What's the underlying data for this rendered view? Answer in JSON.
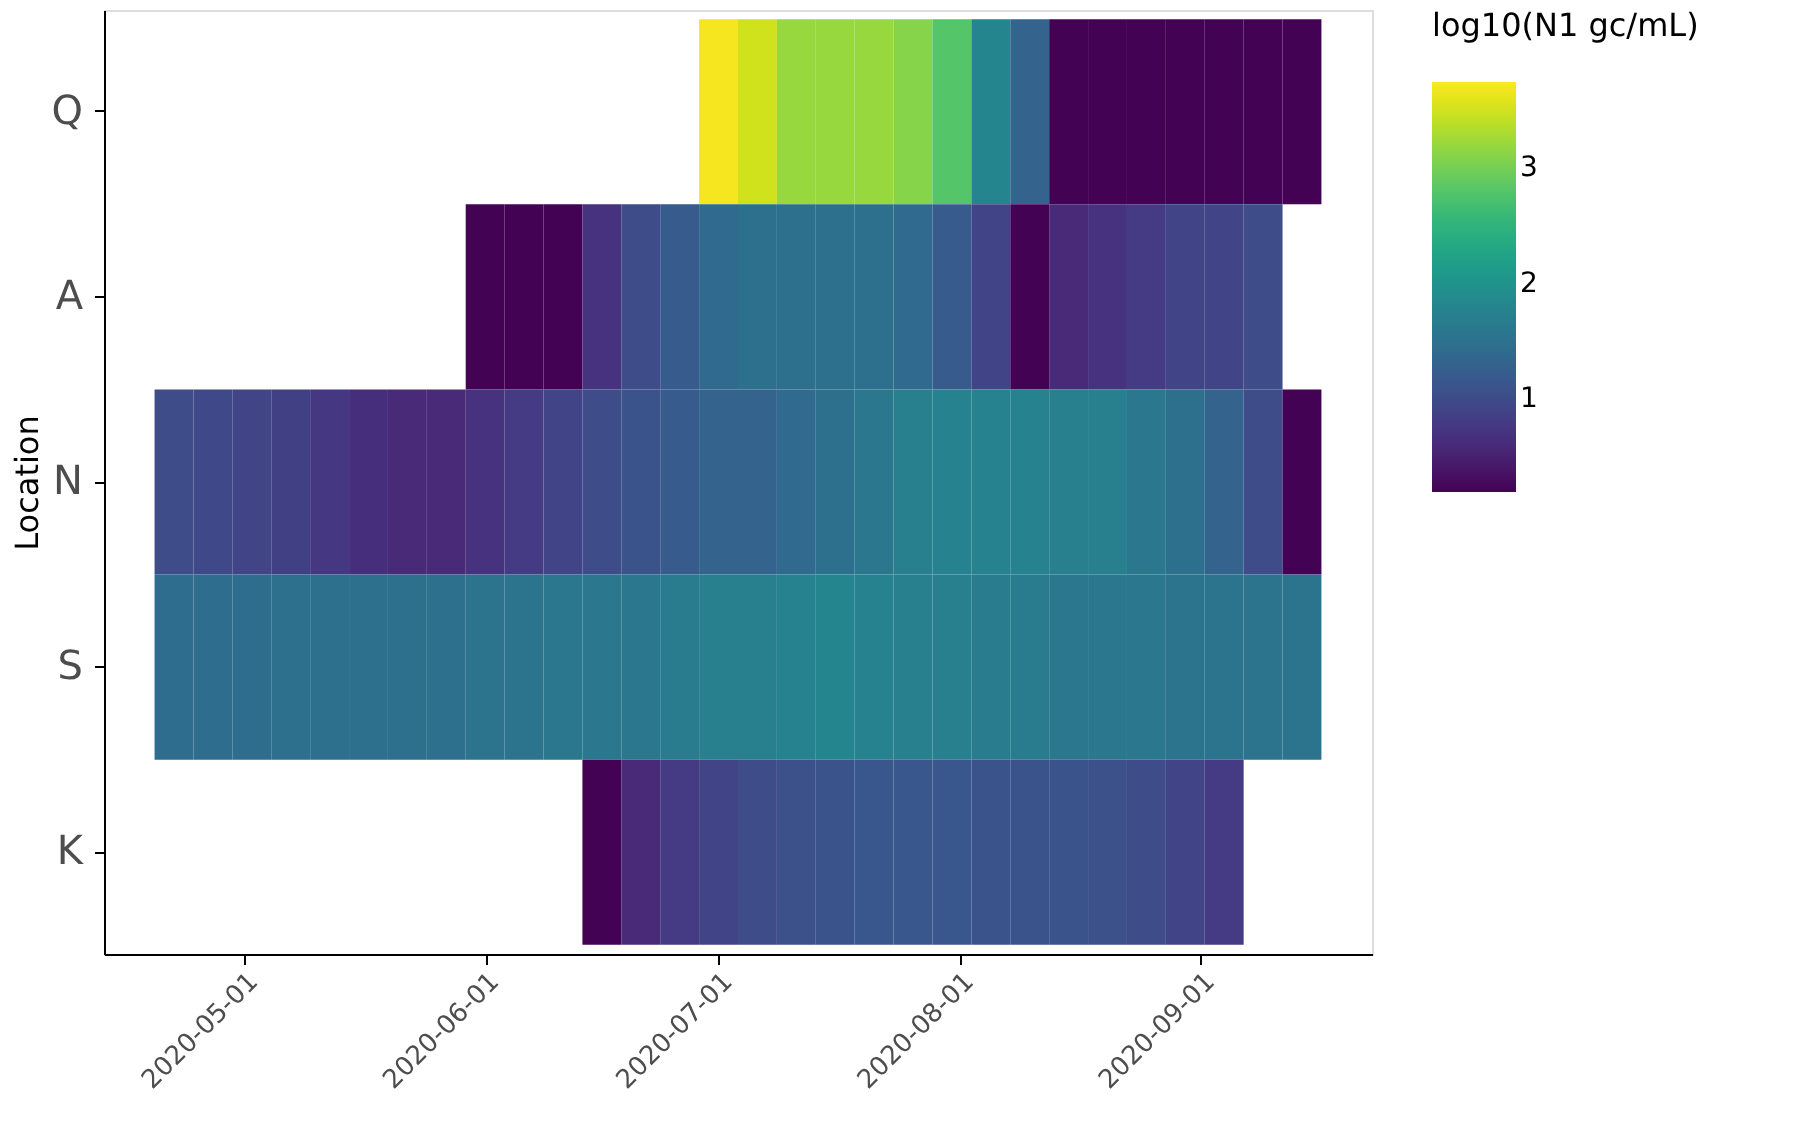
{
  "chart_data": {
    "type": "heatmap",
    "ylabel": "Location",
    "clabel": "log10(N1 gc/mL)",
    "x": [
      "2020-04-22",
      "2020-04-27",
      "2020-05-02",
      "2020-05-07",
      "2020-05-12",
      "2020-05-17",
      "2020-05-22",
      "2020-05-27",
      "2020-06-01",
      "2020-06-06",
      "2020-06-11",
      "2020-06-16",
      "2020-06-21",
      "2020-06-26",
      "2020-07-01",
      "2020-07-06",
      "2020-07-11",
      "2020-07-16",
      "2020-07-21",
      "2020-07-26",
      "2020-07-31",
      "2020-08-05",
      "2020-08-10",
      "2020-08-15",
      "2020-08-20",
      "2020-08-25",
      "2020-08-30",
      "2020-09-04",
      "2020-09-09",
      "2020-09-14"
    ],
    "y_categories": [
      "Q",
      "A",
      "N",
      "S",
      "K"
    ],
    "cells": [
      [
        null,
        null,
        null,
        null,
        null,
        null,
        null,
        null,
        null,
        null,
        null,
        null,
        null,
        null,
        3.7,
        3.5,
        3.2,
        3.2,
        3.2,
        3.1,
        2.8,
        1.8,
        1.3,
        0.2,
        0.2,
        0.2,
        0.2,
        0.2,
        0.2,
        0.2
      ],
      [
        null,
        null,
        null,
        null,
        null,
        null,
        null,
        null,
        0.2,
        0.2,
        0.2,
        0.7,
        1.0,
        1.2,
        1.4,
        1.5,
        1.5,
        1.5,
        1.5,
        1.4,
        1.2,
        0.9,
        0.2,
        0.6,
        0.7,
        0.8,
        0.9,
        0.9,
        1.0,
        null
      ],
      [
        1.0,
        0.95,
        0.9,
        0.85,
        0.75,
        0.65,
        0.6,
        0.6,
        0.7,
        0.8,
        0.9,
        1.0,
        1.1,
        1.2,
        1.3,
        1.3,
        1.4,
        1.5,
        1.6,
        1.7,
        1.75,
        1.75,
        1.75,
        1.7,
        1.7,
        1.6,
        1.5,
        1.3,
        1.0,
        0.2
      ],
      [
        1.45,
        1.45,
        1.45,
        1.5,
        1.5,
        1.5,
        1.5,
        1.5,
        1.55,
        1.55,
        1.6,
        1.6,
        1.6,
        1.65,
        1.7,
        1.7,
        1.75,
        1.8,
        1.75,
        1.7,
        1.7,
        1.65,
        1.65,
        1.6,
        1.6,
        1.6,
        1.55,
        1.55,
        1.55,
        1.55
      ],
      [
        null,
        null,
        null,
        null,
        null,
        null,
        null,
        null,
        null,
        null,
        null,
        0.2,
        0.6,
        0.8,
        0.9,
        1.0,
        1.05,
        1.1,
        1.15,
        1.15,
        1.15,
        1.1,
        1.1,
        1.1,
        1.05,
        1.0,
        0.9,
        0.8,
        null,
        null
      ]
    ],
    "clim": [
      0.19,
      3.75
    ],
    "cticks": [
      1,
      2,
      3
    ],
    "xlim": [
      "2020-04-13",
      "2020-09-23"
    ],
    "xticks": [
      "2020-05-01",
      "2020-06-01",
      "2020-07-01",
      "2020-08-01",
      "2020-09-01"
    ]
  }
}
